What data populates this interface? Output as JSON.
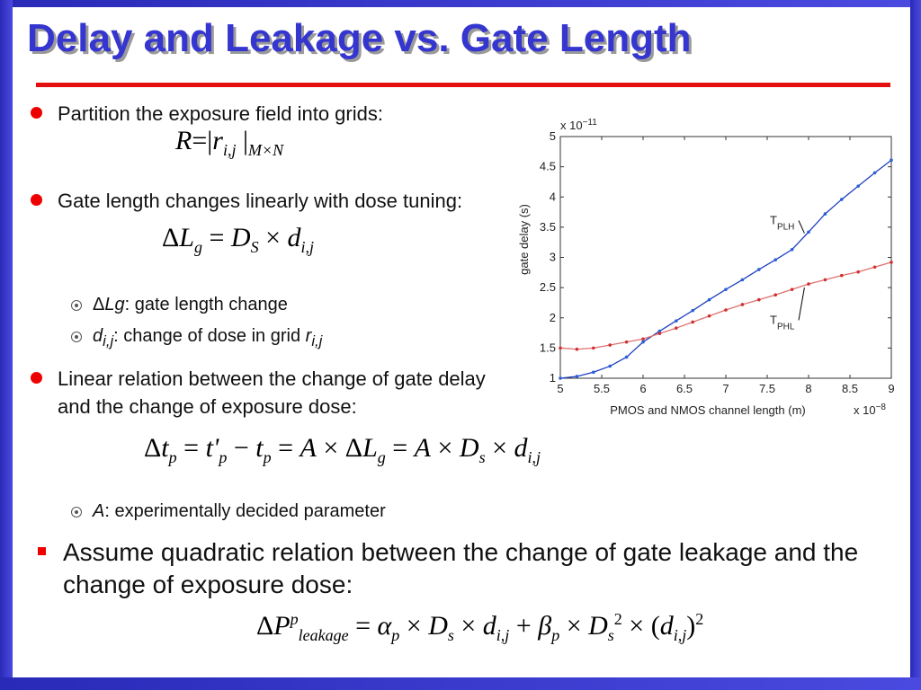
{
  "slide": {
    "title": "Delay and Leakage vs. Gate Length",
    "bullets": [
      {
        "pieces": [
          {
            "text": "Partition the exposure field into grids:"
          }
        ]
      },
      {
        "pieces": [
          {
            "text": "Gate length changes linearly with dose tuning:"
          }
        ]
      },
      {
        "pieces": [
          {
            "text": "Δ"
          },
          {
            "text": "Lg",
            "italic": true
          },
          {
            "text": ": gate length change"
          }
        ]
      },
      {
        "pieces": [
          {
            "text": "d",
            "italic": true
          },
          {
            "text": "i,j",
            "italic": true,
            "pos": "sub"
          },
          {
            "text": ": change of dose in grid "
          },
          {
            "text": "r",
            "italic": true
          },
          {
            "text": "i,j",
            "italic": true,
            "pos": "sub"
          }
        ]
      },
      {
        "pieces": [
          {
            "text": "Linear relation between the change of gate delay and the change of exposure dose:"
          }
        ]
      },
      {
        "pieces": [
          {
            "text": "A",
            "italic": true
          },
          {
            "text": ": experimentally decided parameter"
          }
        ]
      },
      {
        "pieces": [
          {
            "text": "Assume quadratic relation between the change of gate leakage and the change of exposure dose:"
          }
        ]
      }
    ],
    "equations": [
      [
        {
          "text": "R",
          "italic": true
        },
        {
          "text": "=|"
        },
        {
          "text": "r",
          "italic": true
        },
        {
          "text": "i,j",
          "italic": true,
          "pos": "sub"
        },
        {
          "text": " |"
        },
        {
          "text": "M×N",
          "italic": true,
          "pos": "sub"
        }
      ],
      [
        {
          "text": "Δ"
        },
        {
          "text": "L",
          "italic": true
        },
        {
          "text": "g",
          "italic": true,
          "pos": "sub"
        },
        {
          "text": " = "
        },
        {
          "text": "D",
          "italic": true
        },
        {
          "text": "S",
          "italic": true,
          "pos": "sub"
        },
        {
          "text": " × "
        },
        {
          "text": "d",
          "italic": true
        },
        {
          "text": "i,j",
          "italic": true,
          "pos": "sub"
        }
      ],
      [
        {
          "text": "Δ"
        },
        {
          "text": "t",
          "italic": true
        },
        {
          "text": "p",
          "italic": true,
          "pos": "sub"
        },
        {
          "text": " = "
        },
        {
          "text": "t'",
          "italic": true
        },
        {
          "text": "p",
          "italic": true,
          "pos": "sub"
        },
        {
          "text": " − "
        },
        {
          "text": "t",
          "italic": true
        },
        {
          "text": "p",
          "italic": true,
          "pos": "sub"
        },
        {
          "text": " = "
        },
        {
          "text": "A",
          "italic": true
        },
        {
          "text": " × Δ"
        },
        {
          "text": "L",
          "italic": true
        },
        {
          "text": "g",
          "italic": true,
          "pos": "sub"
        },
        {
          "text": " = "
        },
        {
          "text": "A",
          "italic": true
        },
        {
          "text": " × "
        },
        {
          "text": "D",
          "italic": true
        },
        {
          "text": "s",
          "italic": true,
          "pos": "sub"
        },
        {
          "text": " × "
        },
        {
          "text": "d",
          "italic": true
        },
        {
          "text": "i,j",
          "italic": true,
          "pos": "sub"
        }
      ],
      [
        {
          "text": "Δ"
        },
        {
          "text": "P",
          "italic": true
        },
        {
          "text": "p",
          "italic": true,
          "pos": "sup"
        },
        {
          "text": "leakage",
          "italic": true,
          "pos": "sub"
        },
        {
          "text": " = "
        },
        {
          "text": "α",
          "italic": true
        },
        {
          "text": "p",
          "italic": true,
          "pos": "sub"
        },
        {
          "text": " × "
        },
        {
          "text": "D",
          "italic": true
        },
        {
          "text": "s",
          "italic": true,
          "pos": "sub"
        },
        {
          "text": " × "
        },
        {
          "text": "d",
          "italic": true
        },
        {
          "text": "i,j",
          "italic": true,
          "pos": "sub"
        },
        {
          "text": " + "
        },
        {
          "text": "β",
          "italic": true
        },
        {
          "text": "p",
          "italic": true,
          "pos": "sub"
        },
        {
          "text": " × "
        },
        {
          "text": "D",
          "italic": true
        },
        {
          "text": "s",
          "italic": true,
          "pos": "sub"
        },
        {
          "text": "2",
          "pos": "sup"
        },
        {
          "text": " × ("
        },
        {
          "text": "d",
          "italic": true
        },
        {
          "text": "i,j",
          "italic": true,
          "pos": "sub"
        },
        {
          "text": ")"
        },
        {
          "text": "2",
          "pos": "sup"
        }
      ]
    ]
  },
  "chart_data": {
    "type": "line",
    "x_label": "PMOS and NMOS channel length (m)",
    "y_label": "gate delay (s)",
    "x_multiplier": [
      {
        "text": "x 10"
      },
      {
        "text": "−8",
        "pos": "sup"
      }
    ],
    "y_multiplier": [
      {
        "text": "x 10"
      },
      {
        "text": "−11",
        "pos": "sup"
      }
    ],
    "x": [
      5,
      5.2,
      5.4,
      5.6,
      5.8,
      6,
      6.2,
      6.4,
      6.6,
      6.8,
      7,
      7.2,
      7.4,
      7.6,
      7.8,
      8,
      8.2,
      8.4,
      8.6,
      8.8,
      9
    ],
    "series": [
      {
        "color": "#1f3fbf",
        "marker_color": "#2a5fd8",
        "values": [
          1.0,
          1.03,
          1.1,
          1.2,
          1.35,
          1.6,
          1.78,
          1.95,
          2.12,
          2.3,
          2.47,
          2.63,
          2.8,
          2.96,
          3.13,
          3.42,
          3.72,
          3.96,
          4.18,
          4.4,
          4.61
        ]
      },
      {
        "color": "#e07070",
        "marker_color": "#d03030",
        "values": [
          1.5,
          1.48,
          1.5,
          1.55,
          1.6,
          1.65,
          1.74,
          1.83,
          1.93,
          2.03,
          2.13,
          2.22,
          2.3,
          2.38,
          2.47,
          2.56,
          2.63,
          2.7,
          2.76,
          2.84,
          2.92
        ]
      }
    ],
    "annotations": [
      {
        "pieces": [
          {
            "text": "T"
          },
          {
            "text": "PLH",
            "pos": "sub"
          }
        ],
        "x": 7.75,
        "y": 3.55,
        "to_x": 7.95,
        "to_y": 3.4
      },
      {
        "pieces": [
          {
            "text": "T"
          },
          {
            "text": "PHL",
            "pos": "sub"
          }
        ],
        "x": 7.75,
        "y": 1.9,
        "to_x": 7.95,
        "to_y": 2.5
      }
    ],
    "xlim": [
      5,
      9
    ],
    "ylim": [
      1,
      5
    ],
    "xticks": [
      5,
      5.5,
      6,
      6.5,
      7,
      7.5,
      8,
      8.5,
      9
    ],
    "yticks": [
      1,
      1.5,
      2,
      2.5,
      3,
      3.5,
      4,
      4.5,
      5
    ]
  }
}
